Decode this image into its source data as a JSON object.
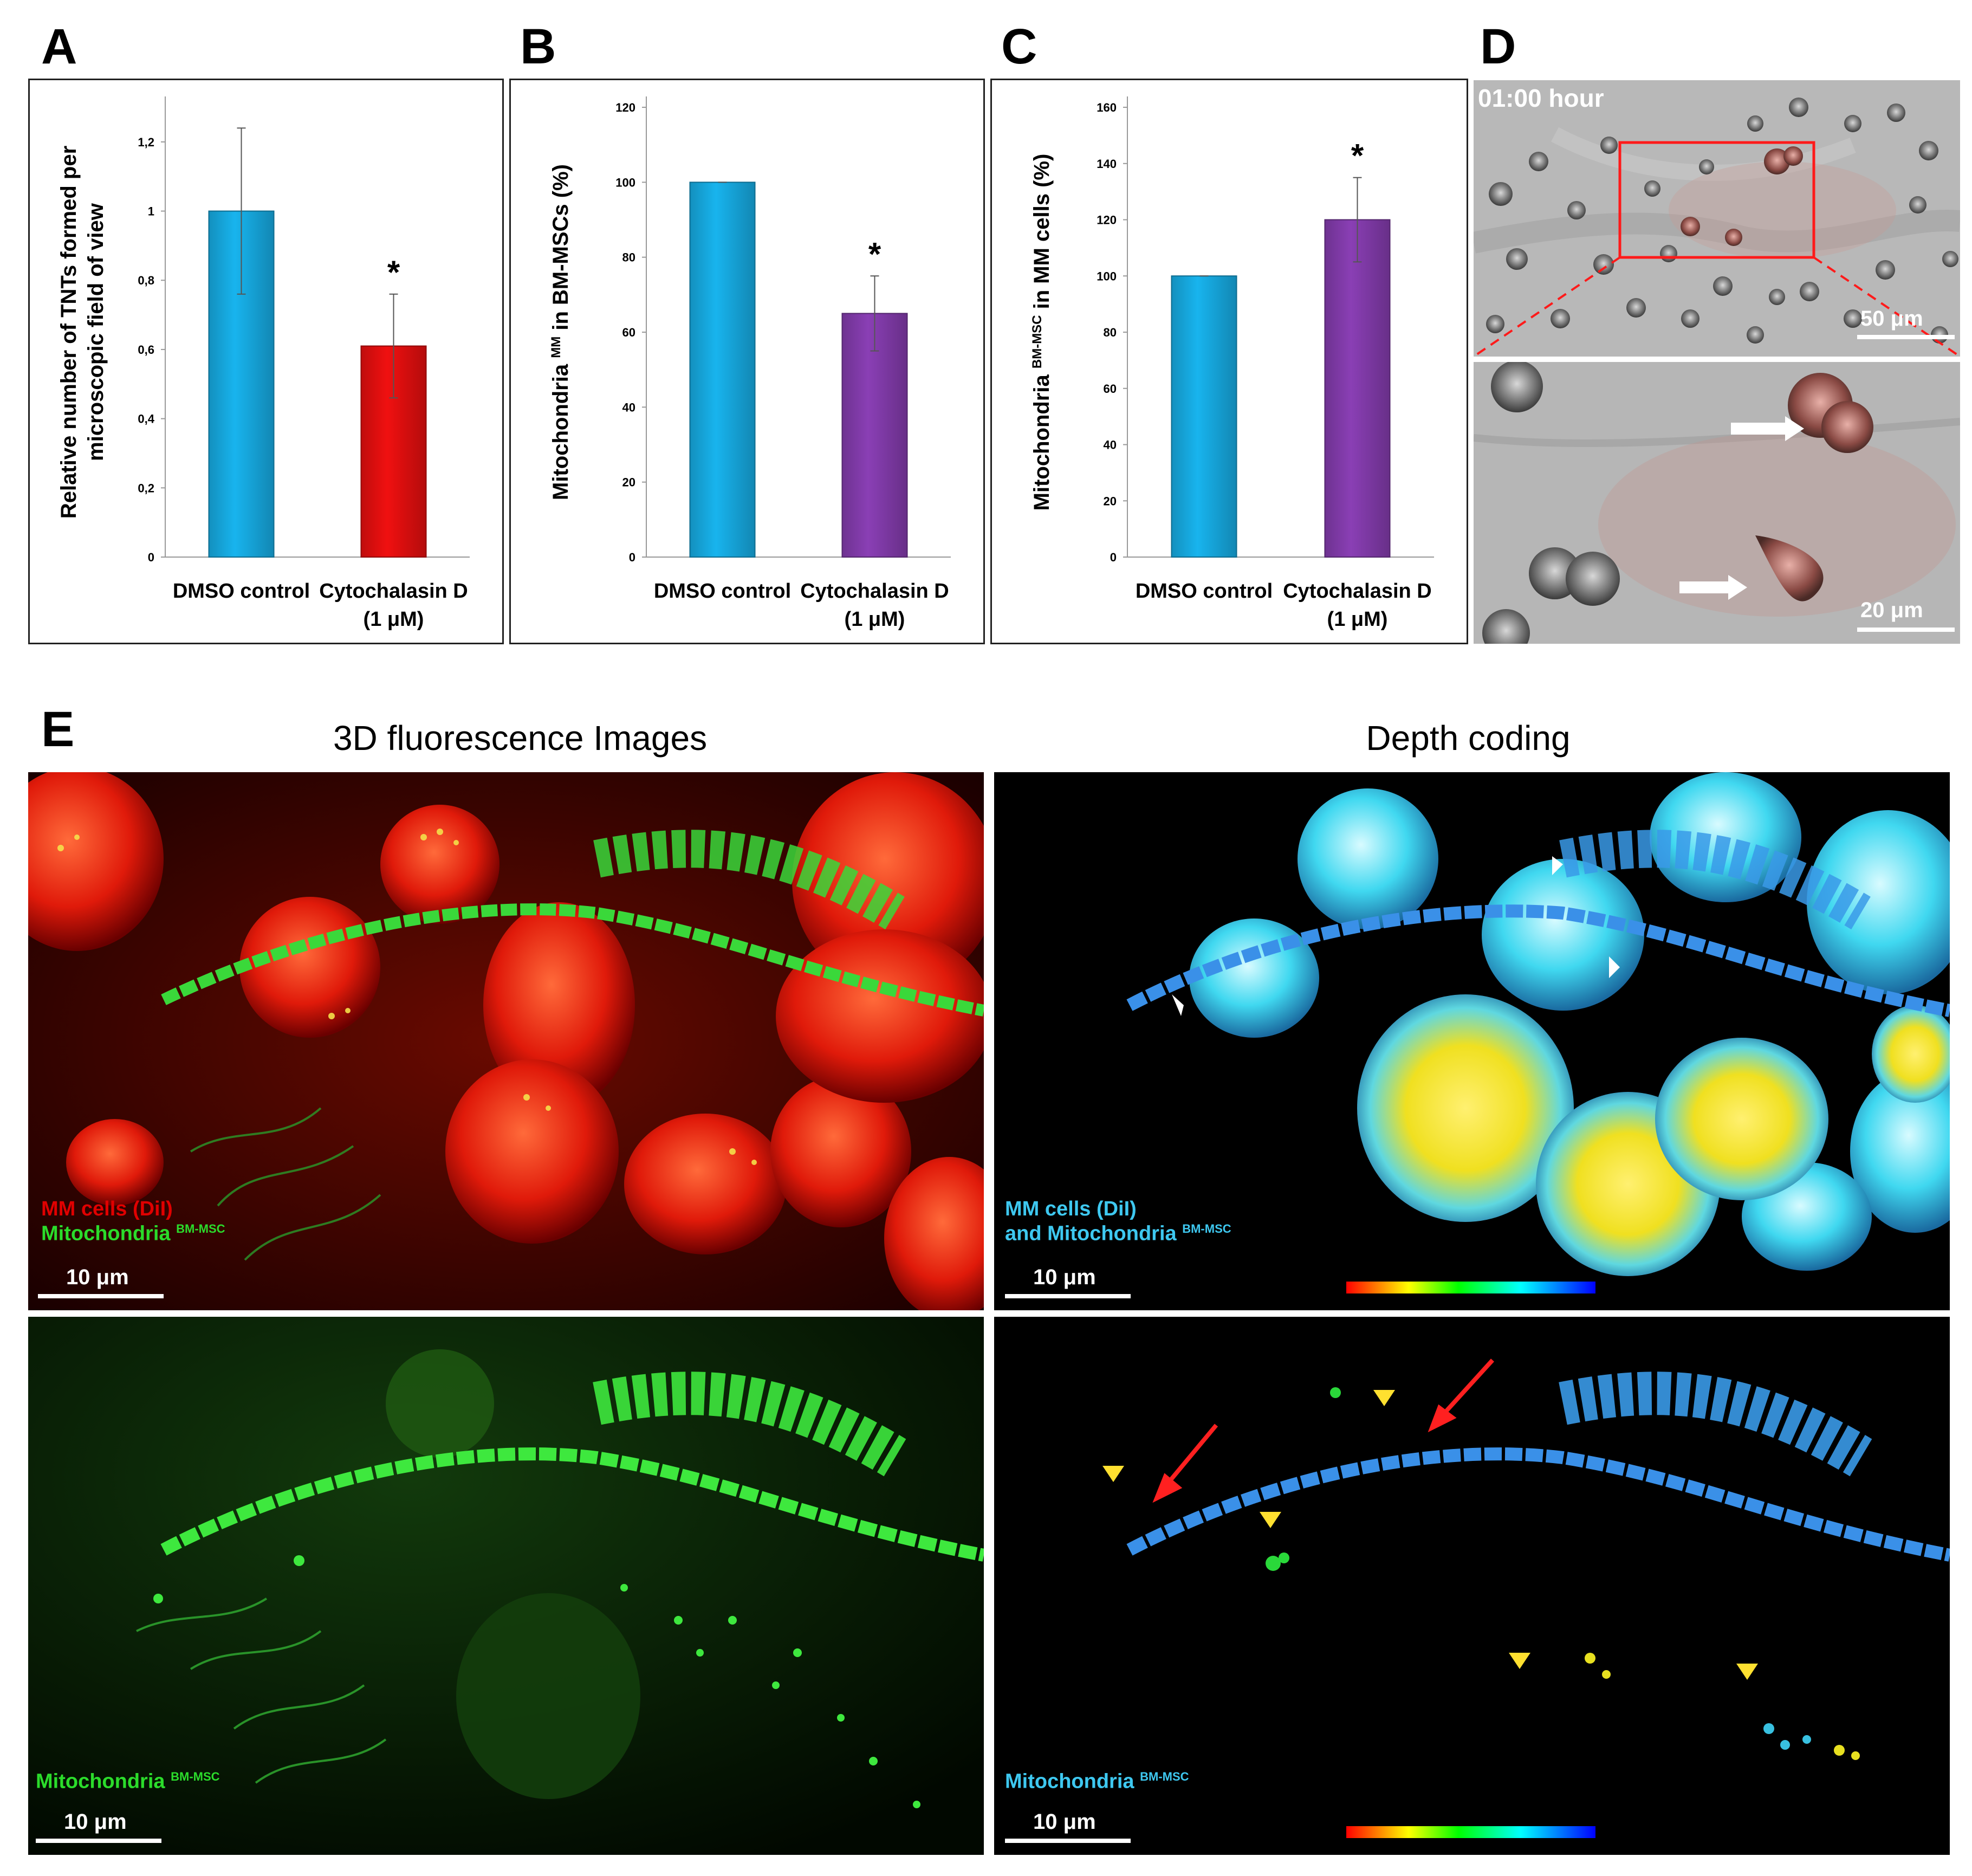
{
  "panels": {
    "A": "A",
    "B": "B",
    "C": "C",
    "D": "D",
    "E": "E"
  },
  "chart_data": [
    {
      "panel": "A",
      "type": "bar",
      "ylabel_line1": "Relative number of TNTs formed per",
      "ylabel_line2": "microscopic field of view",
      "yticks": [
        "0",
        "0,2",
        "0,4",
        "0,6",
        "0,8",
        "1",
        "1,2"
      ],
      "ylim": [
        0,
        1.3
      ],
      "categories": [
        {
          "line1": "DMSO control",
          "line2": ""
        },
        {
          "line1": "Cytochalasin D",
          "line2": "(1 μM)"
        }
      ],
      "values": [
        1.0,
        0.61
      ],
      "errors": [
        0.24,
        0.15
      ],
      "colors": [
        "#18b4ee",
        "#f01010"
      ],
      "annotations": [
        "",
        "*"
      ]
    },
    {
      "panel": "B",
      "type": "bar",
      "ylabel_pre": "Mitochondria",
      "ylabel_sup": "MM",
      "ylabel_post": " in BM-MSCs (%)",
      "yticks": [
        "0",
        "20",
        "40",
        "60",
        "80",
        "100",
        "120"
      ],
      "ylim": [
        0,
        120
      ],
      "categories": [
        {
          "line1": "DMSO control",
          "line2": ""
        },
        {
          "line1": "Cytochalasin D",
          "line2": "(1 μM)"
        }
      ],
      "values": [
        100,
        65
      ],
      "errors": [
        0,
        10
      ],
      "colors": [
        "#18b4ee",
        "#8a3fb5"
      ],
      "annotations": [
        "",
        "*"
      ]
    },
    {
      "panel": "C",
      "type": "bar",
      "ylabel_pre": "Mitochondria",
      "ylabel_sup": "BM-MSC",
      "ylabel_post": " in MM cells (%)",
      "yticks": [
        "0",
        "20",
        "40",
        "60",
        "80",
        "100",
        "120",
        "140",
        "160"
      ],
      "ylim": [
        0,
        160
      ],
      "categories": [
        {
          "line1": "DMSO control",
          "line2": ""
        },
        {
          "line1": "Cytochalasin D",
          "line2": "(1 μM)"
        }
      ],
      "values": [
        100,
        120
      ],
      "errors": [
        0,
        15
      ],
      "colors": [
        "#18b4ee",
        "#8a3fb5"
      ],
      "annotations": [
        "",
        "*"
      ]
    }
  ],
  "panel_d": {
    "time_label": "01:00 hour",
    "scale_top": "50 μm",
    "scale_bottom": "20 μm"
  },
  "panel_e": {
    "title_left": "3D fluorescence Images",
    "title_right": "Depth coding",
    "tl_label1": "MM cells (DiI)",
    "tl_label2_pre": "Mitochondria",
    "tl_label2_sup": "BM-MSC",
    "tr_label1": "MM cells (DiI)",
    "tr_label2_pre": "and Mitochondria",
    "tr_label2_sup": "BM-MSC",
    "bl_label_pre": "Mitochondria",
    "bl_label_sup": "BM-MSC",
    "br_label_pre": "Mitochondria",
    "br_label_sup": "BM-MSC",
    "scale": "10 μm",
    "colors": {
      "red_label": "#e00000",
      "green_label": "#2bdc2b",
      "cyan_label": "#3ec8f0"
    }
  }
}
